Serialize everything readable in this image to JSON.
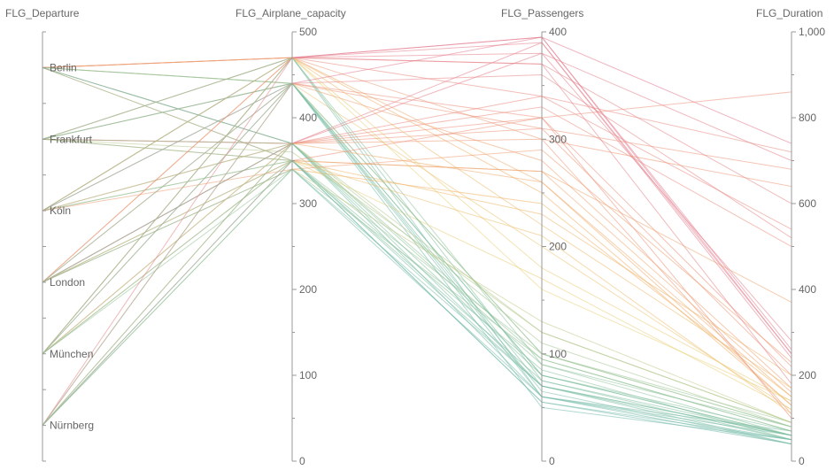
{
  "chart_data": {
    "type": "parallel-coordinates",
    "axes": [
      {
        "key": "FLG_Departure",
        "title": "FLG_Departure",
        "kind": "category",
        "categories": [
          "Berlin",
          "Frankfurt",
          "Köln",
          "London",
          "München",
          "Nürnberg"
        ]
      },
      {
        "key": "FLG_Airplane_capacity",
        "title": "FLG_Airplane_capacity",
        "kind": "numeric",
        "range": [
          0,
          500
        ],
        "ticks": [
          0,
          100,
          200,
          300,
          400,
          500
        ],
        "tick_labels": [
          "0",
          "100",
          "200",
          "300",
          "400",
          "500"
        ]
      },
      {
        "key": "FLG_Passengers",
        "title": "FLG_Passengers",
        "kind": "numeric",
        "range": [
          0,
          400
        ],
        "ticks": [
          0,
          100,
          200,
          300,
          400
        ],
        "tick_labels": [
          "0",
          "100",
          "200",
          "300",
          "400"
        ]
      },
      {
        "key": "FLG_Duration",
        "title": "FLG_Duration",
        "kind": "numeric",
        "range": [
          0,
          1000
        ],
        "ticks": [
          0,
          200,
          400,
          600,
          800,
          1000
        ],
        "tick_labels": [
          "0",
          "200",
          "400",
          "600",
          "800",
          "1,000"
        ]
      }
    ],
    "color_by": "FLG_Passengers",
    "palette": [
      "#5aaec4",
      "#7fbf9e",
      "#e9d27a",
      "#f0b163",
      "#ec8f7a",
      "#e2788d"
    ],
    "series": [
      {
        "d": "Berlin",
        "c": 470,
        "p": 395,
        "t": 740
      },
      {
        "d": "Berlin",
        "c": 470,
        "p": 340,
        "t": 540
      },
      {
        "d": "Berlin",
        "c": 470,
        "p": 300,
        "t": 110
      },
      {
        "d": "Berlin",
        "c": 470,
        "p": 250,
        "t": 130
      },
      {
        "d": "Berlin",
        "c": 440,
        "p": 80,
        "t": 60
      },
      {
        "d": "Berlin",
        "c": 440,
        "p": 200,
        "t": 120
      },
      {
        "d": "Berlin",
        "c": 440,
        "p": 70,
        "t": 40
      },
      {
        "d": "Berlin",
        "c": 370,
        "p": 320,
        "t": 220
      },
      {
        "d": "Berlin",
        "c": 370,
        "p": 90,
        "t": 80
      },
      {
        "d": "Berlin",
        "c": 370,
        "p": 60,
        "t": 70
      },
      {
        "d": "Berlin",
        "c": 350,
        "p": 270,
        "t": 160
      },
      {
        "d": "Berlin",
        "c": 350,
        "p": 85,
        "t": 50
      },
      {
        "d": "Frankfurt",
        "c": 470,
        "p": 380,
        "t": 700
      },
      {
        "d": "Frankfurt",
        "c": 470,
        "p": 160,
        "t": 140
      },
      {
        "d": "Frankfurt",
        "c": 470,
        "p": 60,
        "t": 60
      },
      {
        "d": "Frankfurt",
        "c": 440,
        "p": 310,
        "t": 680
      },
      {
        "d": "Frankfurt",
        "c": 440,
        "p": 50,
        "t": 50
      },
      {
        "d": "Frankfurt",
        "c": 440,
        "p": 100,
        "t": 90
      },
      {
        "d": "Frankfurt",
        "c": 370,
        "p": 390,
        "t": 250
      },
      {
        "d": "Frankfurt",
        "c": 370,
        "p": 330,
        "t": 500
      },
      {
        "d": "Frankfurt",
        "c": 370,
        "p": 95,
        "t": 70
      },
      {
        "d": "Frankfurt",
        "c": 350,
        "p": 230,
        "t": 200
      },
      {
        "d": "Frankfurt",
        "c": 350,
        "p": 75,
        "t": 60
      },
      {
        "d": "Frankfurt",
        "c": 360,
        "p": 120,
        "t": 90
      },
      {
        "d": "Köln",
        "c": 470,
        "p": 370,
        "t": 600
      },
      {
        "d": "Köln",
        "c": 470,
        "p": 220,
        "t": 170
      },
      {
        "d": "Köln",
        "c": 470,
        "p": 90,
        "t": 60
      },
      {
        "d": "Köln",
        "c": 440,
        "p": 360,
        "t": 520
      },
      {
        "d": "Köln",
        "c": 440,
        "p": 65,
        "t": 40
      },
      {
        "d": "Köln",
        "c": 370,
        "p": 300,
        "t": 640
      },
      {
        "d": "Köln",
        "c": 370,
        "p": 110,
        "t": 80
      },
      {
        "d": "Köln",
        "c": 350,
        "p": 170,
        "t": 120
      },
      {
        "d": "Köln",
        "c": 350,
        "p": 55,
        "t": 50
      },
      {
        "d": "Köln",
        "c": 340,
        "p": 290,
        "t": 230
      },
      {
        "d": "London",
        "c": 470,
        "p": 395,
        "t": 250
      },
      {
        "d": "London",
        "c": 470,
        "p": 260,
        "t": 130
      },
      {
        "d": "London",
        "c": 440,
        "p": 320,
        "t": 860
      },
      {
        "d": "London",
        "c": 440,
        "p": 80,
        "t": 70
      },
      {
        "d": "London",
        "c": 370,
        "p": 380,
        "t": 280
      },
      {
        "d": "London",
        "c": 370,
        "p": 340,
        "t": 720
      },
      {
        "d": "London",
        "c": 370,
        "p": 70,
        "t": 60
      },
      {
        "d": "London",
        "c": 350,
        "p": 270,
        "t": 370
      },
      {
        "d": "London",
        "c": 350,
        "p": 100,
        "t": 80
      },
      {
        "d": "London",
        "c": 340,
        "p": 240,
        "t": 150
      },
      {
        "d": "London",
        "c": 340,
        "p": 60,
        "t": 50
      },
      {
        "d": "München",
        "c": 470,
        "p": 390,
        "t": 240
      },
      {
        "d": "München",
        "c": 470,
        "p": 180,
        "t": 140
      },
      {
        "d": "München",
        "c": 470,
        "p": 75,
        "t": 50
      },
      {
        "d": "München",
        "c": 440,
        "p": 280,
        "t": 170
      },
      {
        "d": "München",
        "c": 440,
        "p": 60,
        "t": 40
      },
      {
        "d": "München",
        "c": 370,
        "p": 310,
        "t": 200
      },
      {
        "d": "München",
        "c": 370,
        "p": 120,
        "t": 90
      },
      {
        "d": "München",
        "c": 350,
        "p": 210,
        "t": 110
      },
      {
        "d": "München",
        "c": 350,
        "p": 70,
        "t": 60
      },
      {
        "d": "München",
        "c": 340,
        "p": 95,
        "t": 70
      },
      {
        "d": "Nürnberg",
        "c": 470,
        "p": 370,
        "t": 180
      },
      {
        "d": "Nürnberg",
        "c": 440,
        "p": 395,
        "t": 260
      },
      {
        "d": "Nürnberg",
        "c": 440,
        "p": 100,
        "t": 80
      },
      {
        "d": "Nürnberg",
        "c": 370,
        "p": 260,
        "t": 150
      },
      {
        "d": "Nürnberg",
        "c": 370,
        "p": 80,
        "t": 60
      },
      {
        "d": "Nürnberg",
        "c": 350,
        "p": 320,
        "t": 100
      },
      {
        "d": "Nürnberg",
        "c": 350,
        "p": 55,
        "t": 40
      },
      {
        "d": "Nürnberg",
        "c": 340,
        "p": 130,
        "t": 90
      },
      {
        "d": "Nürnberg",
        "c": 340,
        "p": 70,
        "t": 50
      }
    ]
  }
}
